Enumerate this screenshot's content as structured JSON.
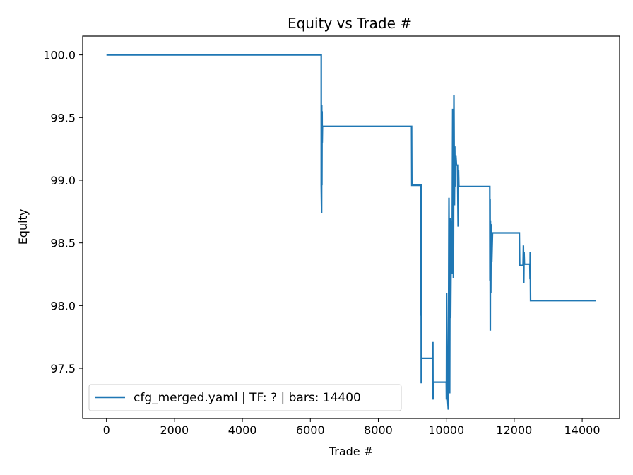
{
  "chart_data": {
    "type": "line",
    "title": "Equity vs Trade #",
    "xlabel": "Trade #",
    "ylabel": "Equity",
    "xlim": [
      -700,
      15100
    ],
    "ylim": [
      97.1,
      100.15
    ],
    "xticks": [
      0,
      2000,
      4000,
      6000,
      8000,
      10000,
      12000,
      14000
    ],
    "yticks": [
      97.5,
      98.0,
      98.5,
      99.0,
      99.5,
      100.0
    ],
    "ytick_labels": [
      "97.5",
      "98.0",
      "98.5",
      "99.0",
      "99.5",
      "100.0"
    ],
    "grid": false,
    "legend_position": "lower-left",
    "colors": {
      "line": "#1f77b4",
      "axes": "#000000",
      "legend_border": "#cccccc"
    },
    "series": [
      {
        "name": "cfg_merged.yaml | TF: ? | bars: 14400",
        "x": [
          0,
          6320,
          6320,
          6330,
          6335,
          6340,
          6345,
          6350,
          6355,
          6360,
          6380,
          8980,
          8985,
          9240,
          9245,
          9250,
          9255,
          9260,
          9265,
          9270,
          9280,
          9600,
          9605,
          9610,
          9615,
          9620,
          10000,
          10005,
          10010,
          10015,
          10030,
          10060,
          10080,
          10100,
          10110,
          10130,
          10150,
          10170,
          10190,
          10210,
          10225,
          10240,
          10250,
          10260,
          10270,
          10280,
          10300,
          10330,
          10350,
          10360,
          10370,
          10400,
          11280,
          11285,
          11290,
          11295,
          11300,
          11310,
          11320,
          11340,
          11360,
          11380,
          11400,
          12150,
          12160,
          12260,
          12270,
          12280,
          12290,
          12300,
          12460,
          12465,
          12470,
          12480,
          12490,
          14400
        ],
        "y": [
          100.0,
          100.0,
          98.96,
          98.74,
          99.6,
          98.96,
          99.55,
          99.3,
          99.42,
          99.43,
          99.43,
          99.43,
          98.96,
          98.96,
          98.44,
          98.86,
          97.92,
          98.97,
          97.38,
          97.58,
          97.58,
          97.58,
          97.71,
          97.25,
          97.39,
          97.39,
          97.39,
          97.25,
          98.1,
          97.9,
          97.3,
          97.17,
          98.86,
          97.3,
          98.7,
          97.9,
          98.68,
          98.25,
          99.57,
          98.22,
          99.68,
          98.8,
          99.27,
          98.95,
          99.12,
          99.2,
          99.12,
          99.12,
          98.63,
          99.08,
          98.95,
          98.95,
          98.95,
          98.2,
          98.85,
          97.8,
          98.68,
          98.1,
          98.65,
          98.35,
          98.58,
          98.58,
          98.58,
          98.58,
          98.32,
          98.32,
          98.48,
          98.18,
          98.43,
          98.33,
          98.33,
          98.21,
          98.43,
          98.04,
          98.04,
          98.04
        ]
      }
    ]
  }
}
